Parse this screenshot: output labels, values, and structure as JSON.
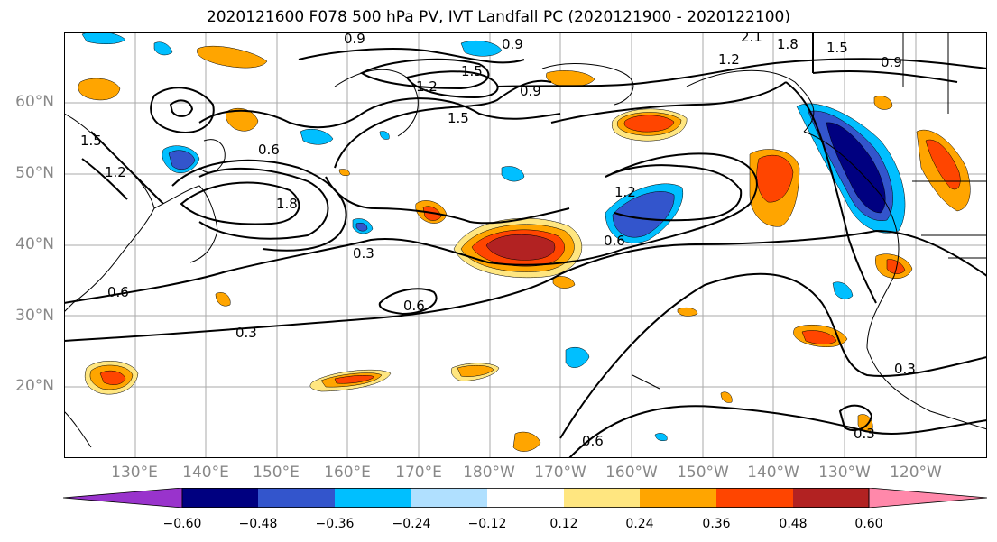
{
  "title": "2020121600 F078 500 hPa PV, IVT Landfall PC (2020121900 - 2020122100)",
  "lat_labels": [
    "60°N",
    "50°N",
    "40°N",
    "30°N",
    "20°N"
  ],
  "lon_labels": [
    "130°E",
    "140°E",
    "150°E",
    "160°E",
    "170°E",
    "180°W",
    "170°W",
    "160°W",
    "150°W",
    "140°W",
    "130°W",
    "120°W"
  ],
  "contour_labels": [
    "0.9",
    "0.9",
    "2.1",
    "1.8",
    "1.5",
    "1.2",
    "0.9",
    "1.5",
    "1.2",
    "0.9",
    "1.5",
    "1.5",
    "1.2",
    "0.6",
    "1.8",
    "1.2",
    "0.3",
    "0.6",
    "0.6",
    "0.3",
    "0.3",
    "0.6",
    "0.3",
    "0.6"
  ],
  "colorbar": {
    "ticks": [
      "−0.60",
      "−0.48",
      "−0.36",
      "−0.24",
      "−0.12",
      "0.12",
      "0.24",
      "0.36",
      "0.48",
      "0.60"
    ],
    "colors": [
      "#9933cc",
      "#000080",
      "#3355cc",
      "#00bfff",
      "#b0e0ff",
      "#ffffff",
      "#ffe680",
      "#ffa500",
      "#ff4500",
      "#b22222",
      "#ff88aa"
    ]
  }
}
